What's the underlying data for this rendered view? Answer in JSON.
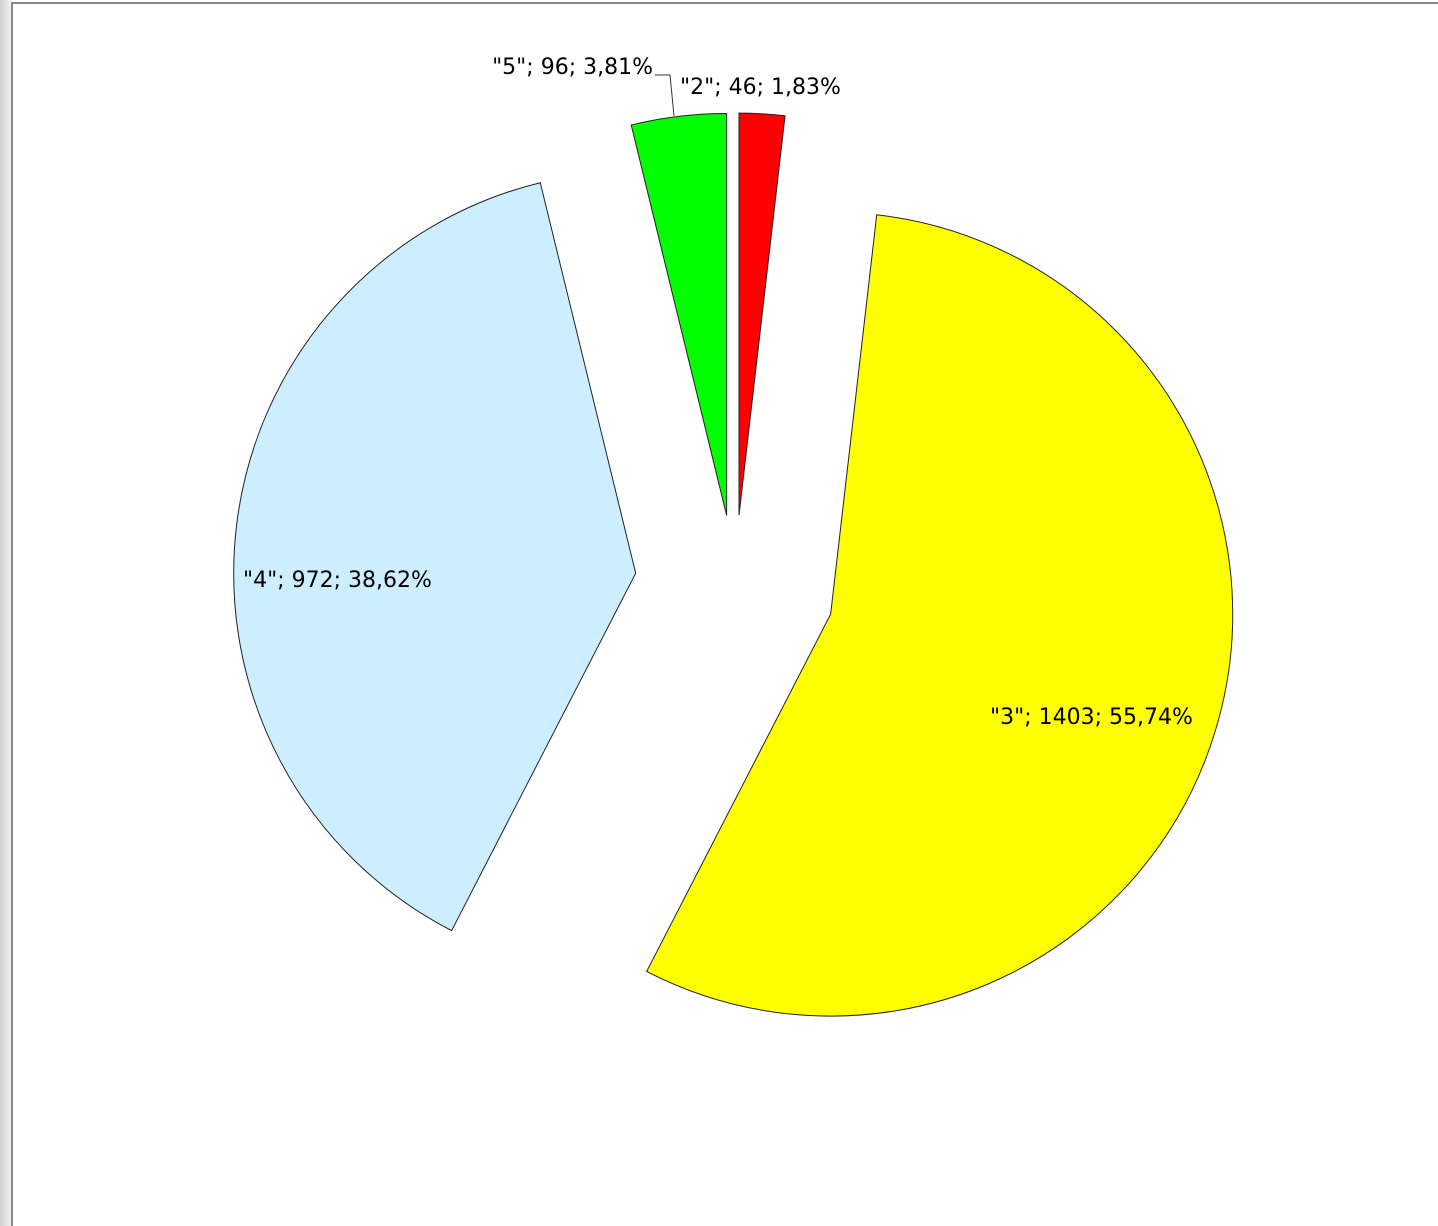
{
  "chart_data": {
    "type": "pie",
    "categories": [
      "\"2\"",
      "\"3\"",
      "\"4\"",
      "\"5\""
    ],
    "values": [
      46,
      1403,
      972,
      96
    ],
    "value_labels": [
      "\"2\"; 46; 1,83%",
      "\"3\"; 1403; 55,74%",
      "\"4\"; 972; 38,62%",
      "\"5\"; 96; 3,81%"
    ],
    "colors": [
      "#ff0000",
      "#ffff00",
      "#cceeff",
      "#00ff00"
    ]
  }
}
